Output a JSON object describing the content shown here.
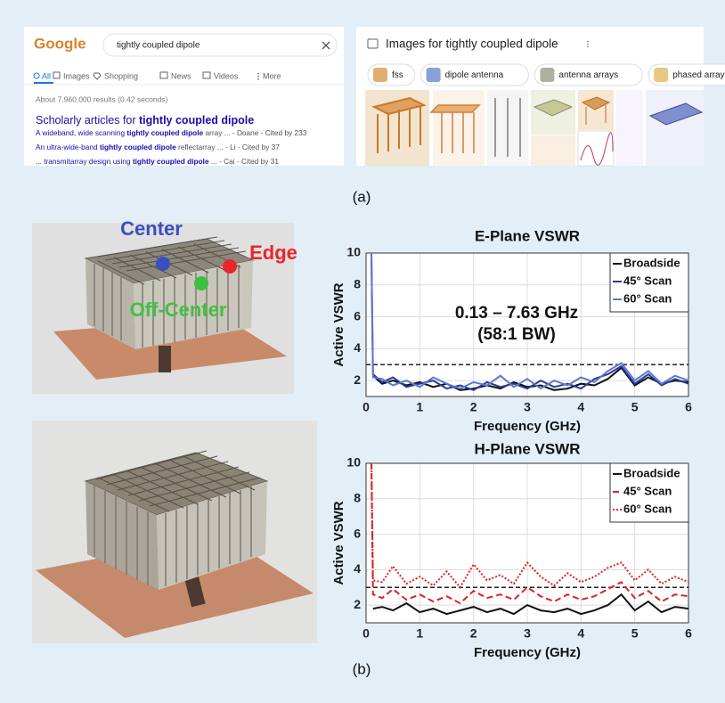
{
  "search_panel": {
    "logo": "Google",
    "query": "tightly coupled dipole",
    "tabs": [
      "All",
      "Images",
      "Shopping",
      "News",
      "Videos",
      "More"
    ],
    "stats": "About 7,960,000 results (0.42 seconds)",
    "scholar_heading": {
      "pre": "Scholarly articles for ",
      "bold": "tightly coupled dipole"
    },
    "results": [
      {
        "pre": "A wideband, wide scanning ",
        "bold": "tightly coupled dipole",
        "post": " array ... - Doane - Cited by 233"
      },
      {
        "pre": "An ultra-wide-band ",
        "bold": "tightly coupled dipole",
        "post": " reflectarray ... - Li - Cited by 37"
      },
      {
        "pre": "... transmitarray design using ",
        "bold": "tightly coupled dipole",
        "post": " ... - Cai - Cited by 31"
      }
    ]
  },
  "images_panel": {
    "heading": "Images for tightly coupled dipole",
    "chips": [
      "fss",
      "dipole antenna",
      "antenna arrays",
      "phased array"
    ]
  },
  "photo_labels": {
    "center": "Center",
    "edge": "Edge",
    "off_center": "Off-Center"
  },
  "panel_labels": {
    "a": "(a)",
    "b": "(b)"
  },
  "chart_data": [
    {
      "type": "line",
      "title": "E-Plane VSWR",
      "x_label": "Frequency (GHz)",
      "y_label": "Active VSWR",
      "annotations": [
        "0.13 – 7.63 GHz",
        "(58:1 BW)"
      ],
      "reference_line": 3,
      "grid": true,
      "legend": "upper right",
      "xlim": [
        0,
        6
      ],
      "xticks": [
        0,
        1,
        2,
        3,
        4,
        5,
        6
      ],
      "ylim": [
        1,
        10
      ],
      "yticks": [
        2,
        4,
        6,
        8,
        10
      ],
      "x": [
        0.1,
        0.13,
        0.3,
        0.5,
        0.75,
        1,
        1.25,
        1.5,
        1.75,
        2,
        2.25,
        2.5,
        2.75,
        3,
        3.25,
        3.5,
        3.75,
        4,
        4.25,
        4.5,
        4.75,
        5,
        5.25,
        5.5,
        5.75,
        6
      ],
      "series": [
        {
          "name": "Broadside",
          "color": "#111111",
          "style": "solid",
          "values": [
            null,
            2.3,
            1.8,
            2.0,
            1.7,
            1.9,
            1.6,
            1.8,
            1.4,
            1.5,
            1.7,
            1.5,
            1.9,
            1.6,
            1.7,
            1.4,
            1.5,
            1.8,
            1.7,
            2.1,
            2.8,
            1.7,
            2.2,
            1.8,
            2.0,
            1.9
          ]
        },
        {
          "name": "45° Scan",
          "color": "#2b3a9c",
          "style": "solid",
          "values": [
            10,
            2.4,
            1.9,
            2.2,
            1.6,
            1.8,
            2.0,
            1.5,
            1.7,
            1.4,
            1.9,
            1.6,
            1.8,
            1.5,
            2.0,
            1.6,
            1.8,
            1.5,
            2.1,
            2.4,
            2.9,
            1.8,
            2.4,
            1.7,
            2.1,
            1.8
          ]
        },
        {
          "name": "60° Scan",
          "color": "#5a7ad0",
          "style": "solid",
          "values": [
            10,
            2.2,
            2.1,
            1.7,
            2.0,
            1.6,
            2.2,
            1.8,
            1.5,
            1.9,
            1.7,
            2.3,
            1.6,
            2.1,
            1.5,
            2.0,
            1.7,
            2.2,
            1.9,
            2.6,
            3.1,
            2.0,
            2.6,
            1.8,
            2.3,
            2.0
          ]
        }
      ]
    },
    {
      "type": "line",
      "title": "H-Plane VSWR",
      "x_label": "Frequency (GHz)",
      "y_label": "Active VSWR",
      "reference_line": 3,
      "grid": true,
      "legend": "upper right",
      "xlim": [
        0,
        6
      ],
      "xticks": [
        0,
        1,
        2,
        3,
        4,
        5,
        6
      ],
      "ylim": [
        1,
        10
      ],
      "yticks": [
        2,
        4,
        6,
        8,
        10
      ],
      "x": [
        0.1,
        0.13,
        0.3,
        0.5,
        0.75,
        1,
        1.25,
        1.5,
        1.75,
        2,
        2.25,
        2.5,
        2.75,
        3,
        3.25,
        3.5,
        3.75,
        4,
        4.25,
        4.5,
        4.75,
        5,
        5.25,
        5.5,
        5.75,
        6
      ],
      "series": [
        {
          "name": "Broadside",
          "color": "#111111",
          "style": "solid",
          "values": [
            null,
            1.8,
            1.9,
            1.7,
            2.1,
            1.6,
            1.8,
            1.5,
            1.7,
            1.9,
            1.6,
            1.8,
            1.5,
            2.0,
            1.7,
            1.6,
            1.8,
            1.5,
            1.7,
            2.0,
            2.6,
            1.7,
            2.2,
            1.6,
            1.9,
            1.8
          ]
        },
        {
          "name": "45° Scan",
          "color": "#e02020",
          "style": "dashed",
          "values": [
            10,
            2.6,
            2.4,
            2.9,
            2.3,
            2.6,
            2.2,
            2.5,
            2.1,
            2.8,
            2.4,
            2.6,
            2.3,
            3.0,
            2.5,
            2.2,
            2.6,
            2.3,
            2.5,
            2.9,
            3.3,
            2.4,
            2.8,
            2.2,
            2.6,
            2.5
          ]
        },
        {
          "name": "60° Scan",
          "color": "#e02020",
          "style": "dotted",
          "values": [
            10,
            3.4,
            3.3,
            4.2,
            3.2,
            3.6,
            3.1,
            3.9,
            3.0,
            4.3,
            3.4,
            3.7,
            3.2,
            4.4,
            3.6,
            3.1,
            3.8,
            3.3,
            3.6,
            4.1,
            4.4,
            3.4,
            4.0,
            3.2,
            3.6,
            3.3
          ]
        }
      ]
    }
  ]
}
